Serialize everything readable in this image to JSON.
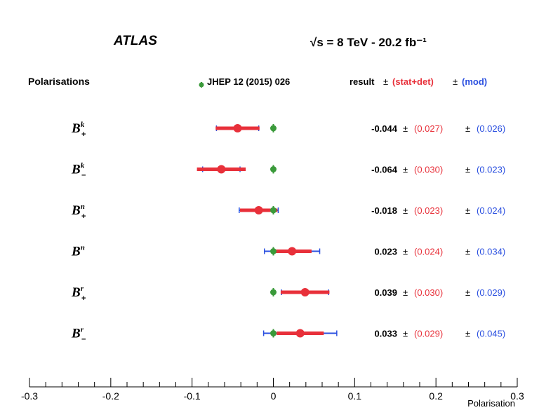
{
  "header": {
    "experiment": "ATLAS",
    "energy_lumi": "√s = 8 TeV - 20.2 fb⁻¹",
    "section_label": "Polarisations",
    "reference_legend": "JHEP 12 (2015) 026",
    "columns": {
      "result": "result",
      "pm1": "±",
      "stat": "(stat+det)",
      "pm2": "±",
      "mod": "(mod)"
    }
  },
  "colors": {
    "reference": "#3a9a3a",
    "stat": "#e8303a",
    "mod": "#2a4fe0",
    "stat_band": "#f4b8c0",
    "text": "#000000"
  },
  "chart_data": {
    "type": "scatter",
    "title": "",
    "xlabel": "Polarisation",
    "ylabel": "",
    "xlim": [
      -0.3,
      0.3
    ],
    "xticks": [
      "-0.3",
      "-0.2",
      "-0.1",
      "0",
      "0.1",
      "0.2",
      "0.3"
    ],
    "grid": false,
    "legend": "top",
    "rows": [
      {
        "label_base": "B",
        "sup": "k",
        "sub": "+",
        "value": -0.044,
        "stat": 0.027,
        "mod": 0.026,
        "reference": 0.0,
        "value_text": "-0.044",
        "stat_text": "(0.027)",
        "mod_text": "(0.026)"
      },
      {
        "label_base": "B",
        "sup": "k",
        "sub": "−",
        "value": -0.064,
        "stat": 0.03,
        "mod": 0.023,
        "reference": 0.0,
        "value_text": "-0.064",
        "stat_text": "(0.030)",
        "mod_text": "(0.023)"
      },
      {
        "label_base": "B",
        "sup": "n",
        "sub": "+",
        "value": -0.018,
        "stat": 0.023,
        "mod": 0.024,
        "reference": 0.0,
        "value_text": "-0.018",
        "stat_text": "(0.023)",
        "mod_text": "(0.024)"
      },
      {
        "label_base": "B",
        "sup": "n",
        "sub": "",
        "value": 0.023,
        "stat": 0.024,
        "mod": 0.034,
        "reference": 0.0,
        "value_text": "0.023",
        "stat_text": "(0.024)",
        "mod_text": "(0.034)"
      },
      {
        "label_base": "B",
        "sup": "r",
        "sub": "+",
        "value": 0.039,
        "stat": 0.03,
        "mod": 0.029,
        "reference": 0.0,
        "value_text": "0.039",
        "stat_text": "(0.030)",
        "mod_text": "(0.029)"
      },
      {
        "label_base": "B",
        "sup": "r",
        "sub": "−",
        "value": 0.033,
        "stat": 0.029,
        "mod": 0.045,
        "reference": 0.0,
        "value_text": "0.033",
        "stat_text": "(0.029)",
        "mod_text": "(0.045)"
      }
    ],
    "pm_symbol": "±"
  }
}
